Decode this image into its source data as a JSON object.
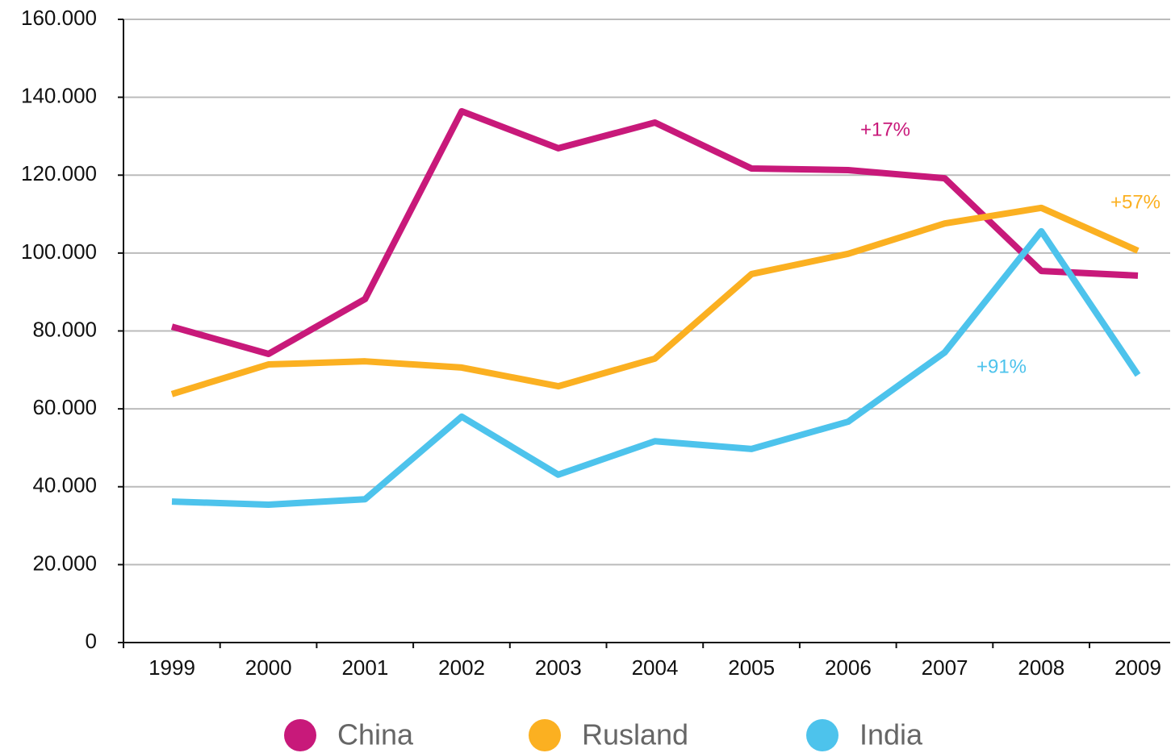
{
  "chart_data": {
    "type": "line",
    "categories": [
      "1999",
      "2000",
      "2001",
      "2002",
      "2003",
      "2004",
      "2005",
      "2006",
      "2007",
      "2008",
      "2009"
    ],
    "series": [
      {
        "name": "China",
        "color": "#c8197a",
        "label": "+17%",
        "values": [
          81100,
          74100,
          88200,
          136400,
          126900,
          133500,
          121700,
          121300,
          119200,
          95400,
          94200
        ]
      },
      {
        "name": "Rusland",
        "color": "#fbb021",
        "label": "+57%",
        "values": [
          63800,
          71400,
          72200,
          70600,
          65800,
          72900,
          94600,
          99800,
          107600,
          111600,
          100600
        ]
      },
      {
        "name": "India",
        "color": "#4dc3ec",
        "label": "+91%",
        "values": [
          36200,
          35400,
          36800,
          58000,
          43100,
          51700,
          49700,
          56700,
          74500,
          105600,
          68700
        ]
      }
    ],
    "ylim": [
      0,
      160000
    ],
    "yticks": [
      0,
      {
        "value": 20000,
        "label": "20.000"
      },
      {
        "value": 40000,
        "label": "40.000"
      },
      {
        "value": 60000,
        "label": "60.000"
      },
      {
        "value": 80000,
        "label": "80.000"
      },
      {
        "value": 100000,
        "label": "100.000"
      },
      {
        "value": 120000,
        "label": "120.000"
      },
      {
        "value": 140000,
        "label": "140.000"
      },
      {
        "value": 160000,
        "label": "160.000"
      }
    ],
    "grid": true
  }
}
